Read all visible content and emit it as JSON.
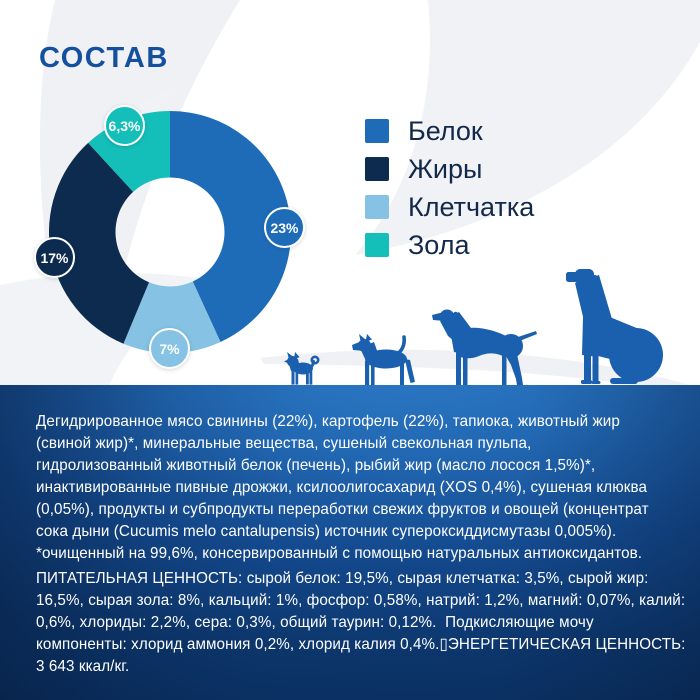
{
  "title": "СОСТАВ",
  "colors": {
    "title": "#15509e",
    "dog": "#1b60ae",
    "legend_text": "#13294b",
    "panel_text": "#ffffff",
    "background_shape": "#f0f2f5"
  },
  "chart_data": {
    "type": "pie",
    "style": "donut",
    "title": "СОСТАВ",
    "unit": "%",
    "segments": [
      {
        "label": "Белок",
        "value": 23,
        "color": "#1e6cb8",
        "badge_label": "23%"
      },
      {
        "label": "Клетчатка",
        "value": 7,
        "color": "#85c2e4",
        "badge_label": "7%"
      },
      {
        "label": "Жиры",
        "value": 17,
        "color": "#0d2b4e",
        "badge_label": "17%"
      },
      {
        "label": "Зола",
        "value": 6.3,
        "color": "#14bfba",
        "badge_label": "6,3%"
      }
    ],
    "legend_position": "right",
    "start_angle_deg": 0
  },
  "legend": {
    "items": [
      {
        "label": "Белок",
        "color": "#1e6cb8"
      },
      {
        "label": "Жиры",
        "color": "#0d2b4e"
      },
      {
        "label": "Клетчатка",
        "color": "#85c2e4"
      },
      {
        "label": "Зола",
        "color": "#14bfba"
      }
    ]
  },
  "panel": {
    "ingredients_lines": [
      "Дегидрированное мясо свинины (22%), картофель (22%), тапиока, животный жир",
      "(свиной жир)*, минеральные вещества, сушеный свекольная пульпа,",
      "гидролизованный животный белок (печень), рыбий жир (масло лосося 1,5%)*,",
      "инактивированные пивные дрожжи, ксилоолигосахарид (XOS 0,4%), сушеная клюква",
      "(0,05%), продукты и субпродукты переработки свежих фруктов и овощей (концентрат",
      "сока дыни (Cucumis melo cantalupensis) источник супероксиддисмутазы 0,005%).",
      "*очищенный на 99,6%, консервированный с помощью натуральных антиоксидантов."
    ],
    "nutrition_lines": [
      "ПИТАТЕЛЬНАЯ ЦЕННОСТЬ: сырой белок: 19,5%, сырая клетчатка: 3,5%, сырой жир:",
      "16,5%, сырая зола: 8%, кальций: 1%, фосфор: 0,58%, натрий: 1,2%, магний: 0,07%, калий:",
      "0,6%, хлориды: 2,2%, сера: 0,3%, общий таурин: 0,12%.  Подкисляющие мочу",
      "компоненты: хлорид аммония 0,2%, хлорид калия 0,4%.▯ЭНЕРГЕТИЧЕСКАЯ ЦЕННОСТЬ:",
      "3 643 ккал/кг."
    ]
  }
}
